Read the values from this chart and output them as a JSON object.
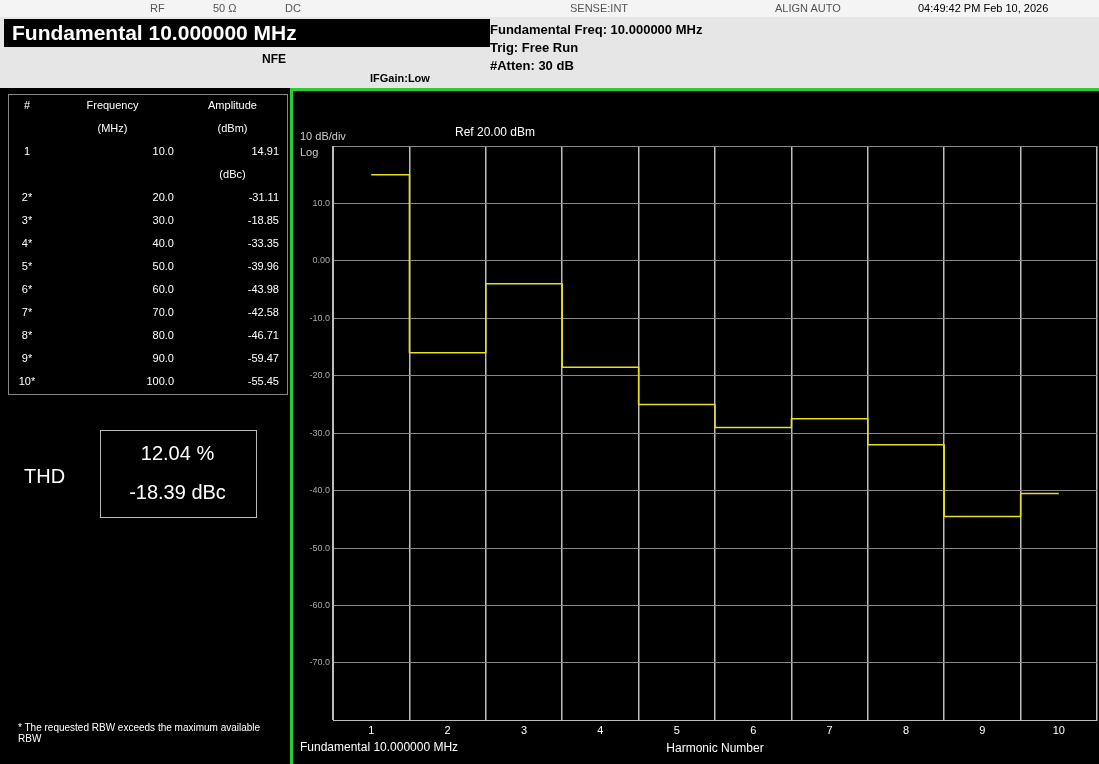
{
  "chart_data": {
    "type": "step",
    "title": "Fundamental 10.000000 MHz",
    "xlabel": "Harmonic Number",
    "categories": [
      "1",
      "2",
      "3",
      "4",
      "5",
      "6",
      "7",
      "8",
      "9",
      "10"
    ],
    "series": [
      {
        "color": "#e6e020",
        "values": [
          15,
          -16,
          -4,
          -18.5,
          -25,
          -29,
          -27.5,
          -32,
          -44.5,
          -40.5
        ]
      }
    ],
    "ylim": [
      -80,
      20
    ],
    "yticks": [
      {
        "value": -80,
        "label": null
      },
      {
        "value": -70,
        "label": "-70.0"
      },
      {
        "value": -60,
        "label": "-60.0"
      },
      {
        "value": -50,
        "label": "-50.0"
      },
      {
        "value": -40,
        "label": "-40.0"
      },
      {
        "value": -30,
        "label": "-30.0"
      },
      {
        "value": -20,
        "label": "-20.0"
      },
      {
        "value": -10,
        "label": "-10.0"
      },
      {
        "value": 0,
        "label": "0.00"
      },
      {
        "value": 10,
        "label": "10.0"
      },
      {
        "value": 20,
        "label": null
      }
    ],
    "grid": true,
    "legend": false,
    "marker": "none",
    "line_style": "solid",
    "annotations": [
      "RF",
      "50 Ω",
      "DC",
      "NFE",
      "IFGain:Low",
      "Fundamental Freq: 10.000000 MHz",
      "Trig: Free Run",
      "#Atten: 30 dB",
      "SENSE:INT",
      "ALIGN AUTO",
      "04:49:42 PM Feb 10, 2026",
      "#",
      "Frequency",
      "Amplitude",
      "(MHz)",
      "(dBm)",
      "1",
      "10.0",
      "14.91",
      "(dBc)",
      "2*",
      "20.0",
      "-31.11",
      "3*",
      "30.0",
      "-18.85",
      "4*",
      "40.0",
      "-33.35",
      "5*",
      "50.0",
      "-39.96",
      "6*",
      "60.0",
      "-43.98",
      "7*",
      "70.0",
      "-42.58",
      "8*",
      "80.0",
      "-46.71",
      "9*",
      "90.0",
      "-59.47",
      "10*",
      "100.0",
      "-55.45",
      "THD",
      "12.04 %",
      "-18.39 dBc",
      "* The requested RBW exceeds the maximum available RBW",
      "10 dB/div",
      "Log",
      "Ref 20.00 dBm",
      "Fundamental  10.000000 MHz"
    ]
  }
}
